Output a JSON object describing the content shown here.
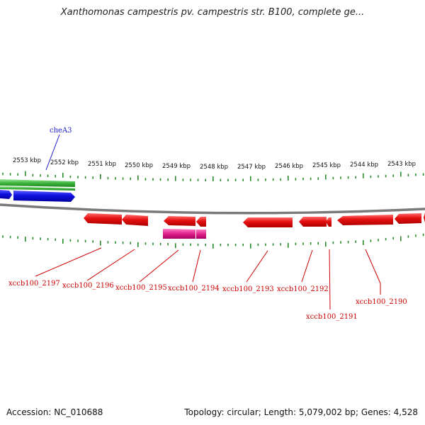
{
  "title": "Xanthomonas campestris pv. campestris str. B100, complete ge...",
  "footer": {
    "accession": "Accession: NC_010688",
    "summary": "Topology: circular; Length: 5,079,002 bp; Genes: 4,528"
  },
  "colors": {
    "backbone": "#7a7a7a",
    "ticks": "#2a8a2a",
    "gene_forward_blue": "#1010e0",
    "gene_green": "#3cb43c",
    "gene_reverse_red": "#e01010",
    "gene_pink": "#e0208c",
    "label_red": "#cc0000",
    "label_blue": "#1a1acc"
  },
  "kbp_labels": [
    "2553 kbp",
    "2552 kbp",
    "2551 kbp",
    "2550 kbp",
    "2549 kbp",
    "2548 kbp",
    "2547 kbp",
    "2546 kbp",
    "2545 kbp",
    "2544 kbp",
    "2543 kbp"
  ],
  "gene_labels": {
    "top": [
      "cheA3"
    ],
    "bottom": [
      "xccb100_2197",
      "xccb100_2196",
      "xccb100_2195",
      "xccb100_2194",
      "xccb100_2193",
      "xccb100_2192",
      "xccb100_2191",
      "xccb100_2190"
    ]
  }
}
